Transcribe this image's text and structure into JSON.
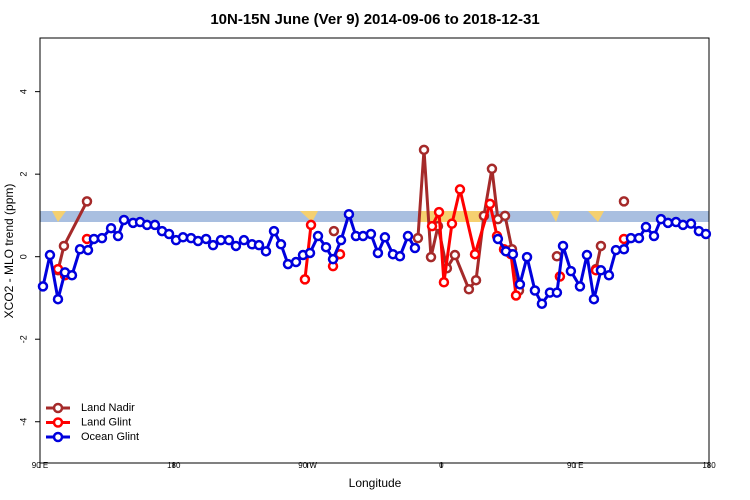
{
  "chart_data": {
    "type": "line",
    "title": "10N-15N June (Ver 9)   2014-09-06 to 2018-12-31",
    "x_label": "Longitude",
    "y_label": "XCO2 - MLO trend (ppm)",
    "xlim": [
      90,
      540
    ],
    "xticks": [
      {
        "value": 90,
        "label": "90 E"
      },
      180,
      {
        "value": 270,
        "label": "90 W"
      },
      {
        "value": 360,
        "label": "0"
      },
      {
        "value": 450,
        "label": "90 E"
      },
      180
    ],
    "ylim": [
      -5,
      5.3
    ],
    "yticks": [
      -4,
      -2,
      0,
      2,
      4
    ],
    "legend": "bottom-left",
    "series": [
      {
        "name": "Land Nadir",
        "color": "#a52a2a",
        "x": [
          102.1,
          106.1,
          121.6,
          null,
          287.7,
          null,
          344.2,
          348.3,
          353.0,
          357.7,
          363.7,
          369.1,
          378.5,
          383.3,
          388.6,
          394.0,
          398.0,
          402.8,
          407.5,
          412.2,
          null,
          437.7,
          null,
          464.0,
          467.3,
          null,
          482.8
        ],
        "values": [
          -0.33,
          0.26,
          1.34,
          null,
          0.62,
          null,
          0.45,
          2.59,
          -0.01,
          0.74,
          -0.28,
          0.04,
          -0.79,
          -0.57,
          0.99,
          2.13,
          0.91,
          0.99,
          0.18,
          -0.82,
          null,
          0.01,
          null,
          -0.3,
          0.26,
          null,
          1.34
        ]
      },
      {
        "name": "Land Glint",
        "color": "#ff0000",
        "x": [
          102.1,
          106.8,
          null,
          121.6,
          null,
          268.2,
          272.3,
          null,
          287.1,
          291.8,
          null,
          353.7,
          358.4,
          361.7,
          367.1,
          372.5,
          382.6,
          392.7,
          397.4,
          402.1,
          406.8,
          410.2,
          null,
          439.7,
          null,
          464.0,
          null,
          482.8
        ],
        "values": [
          -0.3,
          -0.45,
          null,
          0.43,
          null,
          -0.55,
          0.77,
          null,
          -0.23,
          0.06,
          null,
          0.74,
          1.08,
          -0.62,
          0.8,
          1.63,
          0.06,
          1.28,
          0.5,
          0.18,
          0.06,
          -0.94,
          null,
          -0.48,
          null,
          -0.33,
          null,
          0.43
        ]
      },
      {
        "name": "Ocean Glint",
        "color": "#0000dd",
        "x": [
          92.0,
          96.7,
          102.1,
          106.8,
          111.5,
          116.9,
          122.3,
          126.3,
          131.7,
          137.8,
          142.5,
          146.5,
          152.6,
          157.3,
          162.0,
          167.3,
          172.1,
          176.8,
          181.5,
          186.2,
          191.6,
          196.3,
          201.7,
          206.4,
          211.7,
          217.1,
          221.8,
          227.2,
          232.6,
          237.3,
          242.0,
          247.4,
          252.1,
          256.8,
          262.2,
          266.9,
          271.6,
          277.0,
          282.4,
          287.1,
          292.5,
          297.8,
          302.5,
          307.3,
          312.6,
          317.3,
          322.0,
          327.4,
          332.1,
          337.5,
          342.2,
          null,
          398.0,
          403.4,
          408.1,
          412.8,
          417.6,
          422.9,
          427.6,
          433.0,
          437.7,
          441.8,
          447.1,
          453.2,
          457.9,
          462.6,
          467.3,
          472.7,
          477.4,
          482.8,
          487.5,
          492.9,
          497.6,
          503.0,
          507.7,
          512.4,
          517.8,
          522.5,
          527.9,
          533.2,
          537.9
        ],
        "values": [
          -0.72,
          0.04,
          -1.03,
          -0.38,
          -0.45,
          0.18,
          0.16,
          0.43,
          0.45,
          0.69,
          0.5,
          0.89,
          0.82,
          0.84,
          0.77,
          0.77,
          0.62,
          0.55,
          0.4,
          0.47,
          0.45,
          0.38,
          0.43,
          0.28,
          0.4,
          0.4,
          0.26,
          0.4,
          0.3,
          0.28,
          0.13,
          0.62,
          0.3,
          -0.18,
          -0.13,
          0.04,
          0.09,
          0.5,
          0.23,
          -0.06,
          0.4,
          1.03,
          0.5,
          0.5,
          0.55,
          0.09,
          0.47,
          0.06,
          0.01,
          0.5,
          0.21,
          null,
          0.43,
          0.13,
          0.06,
          -0.67,
          -0.01,
          -0.82,
          -1.14,
          -0.87,
          -0.87,
          0.26,
          -0.35,
          -0.72,
          0.04,
          -1.03,
          -0.33,
          -0.45,
          0.16,
          0.18,
          0.45,
          0.45,
          0.72,
          0.5,
          0.91,
          0.82,
          0.84,
          0.77,
          0.8,
          0.62,
          0.55
        ]
      }
    ]
  }
}
